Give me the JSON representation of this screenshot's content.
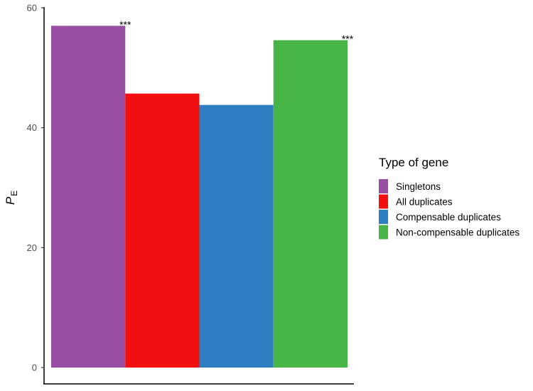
{
  "chart_data": {
    "type": "bar",
    "ylabel_main": "P",
    "ylabel_sub": "E",
    "ylim": [
      0,
      60
    ],
    "yticks": [
      "0",
      "20",
      "40",
      "60"
    ],
    "grid": false,
    "legend_position": "right",
    "legend_title": "Type of gene",
    "series": [
      {
        "name": "Singletons",
        "value": 57.0,
        "color": "#984ea3",
        "annotation": "***"
      },
      {
        "name": "All duplicates",
        "value": 45.7,
        "color": "#f20f0f",
        "annotation": ""
      },
      {
        "name": "Compensable duplicates",
        "value": 43.8,
        "color": "#2f7ec1",
        "annotation": ""
      },
      {
        "name": "Non-compensable duplicates",
        "value": 54.6,
        "color": "#47b546",
        "annotation": "***"
      }
    ]
  }
}
